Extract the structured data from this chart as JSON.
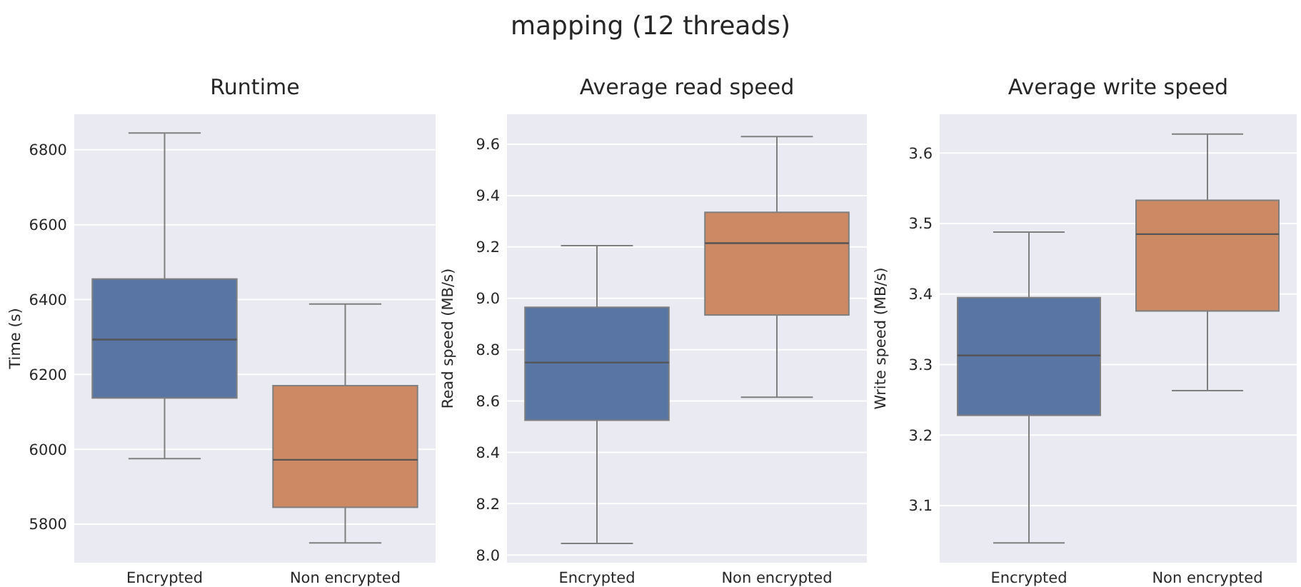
{
  "chart_data": [
    {
      "type": "other",
      "title": "mapping (12 threads)"
    },
    {
      "type": "box",
      "title": "Runtime",
      "ylabel": "Time (s)",
      "categories": [
        "Encrypted",
        "Non encrypted"
      ],
      "colors": [
        "#5975a4",
        "#cc8963"
      ],
      "grid": "y",
      "ylim": [
        5697,
        6895
      ],
      "yticks": [
        5800,
        6000,
        6200,
        6400,
        6600,
        6800
      ],
      "boxes": [
        {
          "low": 5975,
          "q1": 6137,
          "median": 6293,
          "q3": 6455,
          "high": 6845
        },
        {
          "low": 5750,
          "q1": 5845,
          "median": 5972,
          "q3": 6170,
          "high": 6388
        }
      ]
    },
    {
      "type": "box",
      "title": "Average read speed",
      "ylabel": "Read speed (MB/s)",
      "categories": [
        "Encrypted",
        "Non encrypted"
      ],
      "colors": [
        "#5975a4",
        "#cc8963"
      ],
      "grid": "y",
      "ylim": [
        7.97,
        9.717
      ],
      "yticks": [
        {
          "value": 8.0,
          "label": "8.0"
        },
        {
          "value": 8.2,
          "label": "8.2"
        },
        {
          "value": 8.4,
          "label": "8.4"
        },
        {
          "value": 8.6,
          "label": "8.6"
        },
        {
          "value": 8.8,
          "label": "8.8"
        },
        {
          "value": 9.0,
          "label": "9.0"
        },
        {
          "value": 9.2,
          "label": "9.2"
        },
        {
          "value": 9.4,
          "label": "9.4"
        },
        {
          "value": 9.6,
          "label": "9.6"
        }
      ],
      "boxes": [
        {
          "low": 8.045,
          "q1": 8.525,
          "median": 8.75,
          "q3": 8.965,
          "high": 9.205
        },
        {
          "low": 8.615,
          "q1": 8.935,
          "median": 9.215,
          "q3": 9.335,
          "high": 9.63
        }
      ]
    },
    {
      "type": "box",
      "title": "Average write speed",
      "ylabel": "Write speed (MB/s)",
      "categories": [
        "Encrypted",
        "Non encrypted"
      ],
      "colors": [
        "#5975a4",
        "#cc8963"
      ],
      "grid": "y",
      "ylim": [
        3.019,
        3.655
      ],
      "yticks": [
        3.1,
        3.2,
        3.3,
        3.4,
        3.5,
        3.6
      ],
      "boxes": [
        {
          "low": 3.047,
          "q1": 3.228,
          "median": 3.313,
          "q3": 3.395,
          "high": 3.488
        },
        {
          "low": 3.263,
          "q1": 3.376,
          "median": 3.485,
          "q3": 3.533,
          "high": 3.627
        }
      ]
    }
  ]
}
